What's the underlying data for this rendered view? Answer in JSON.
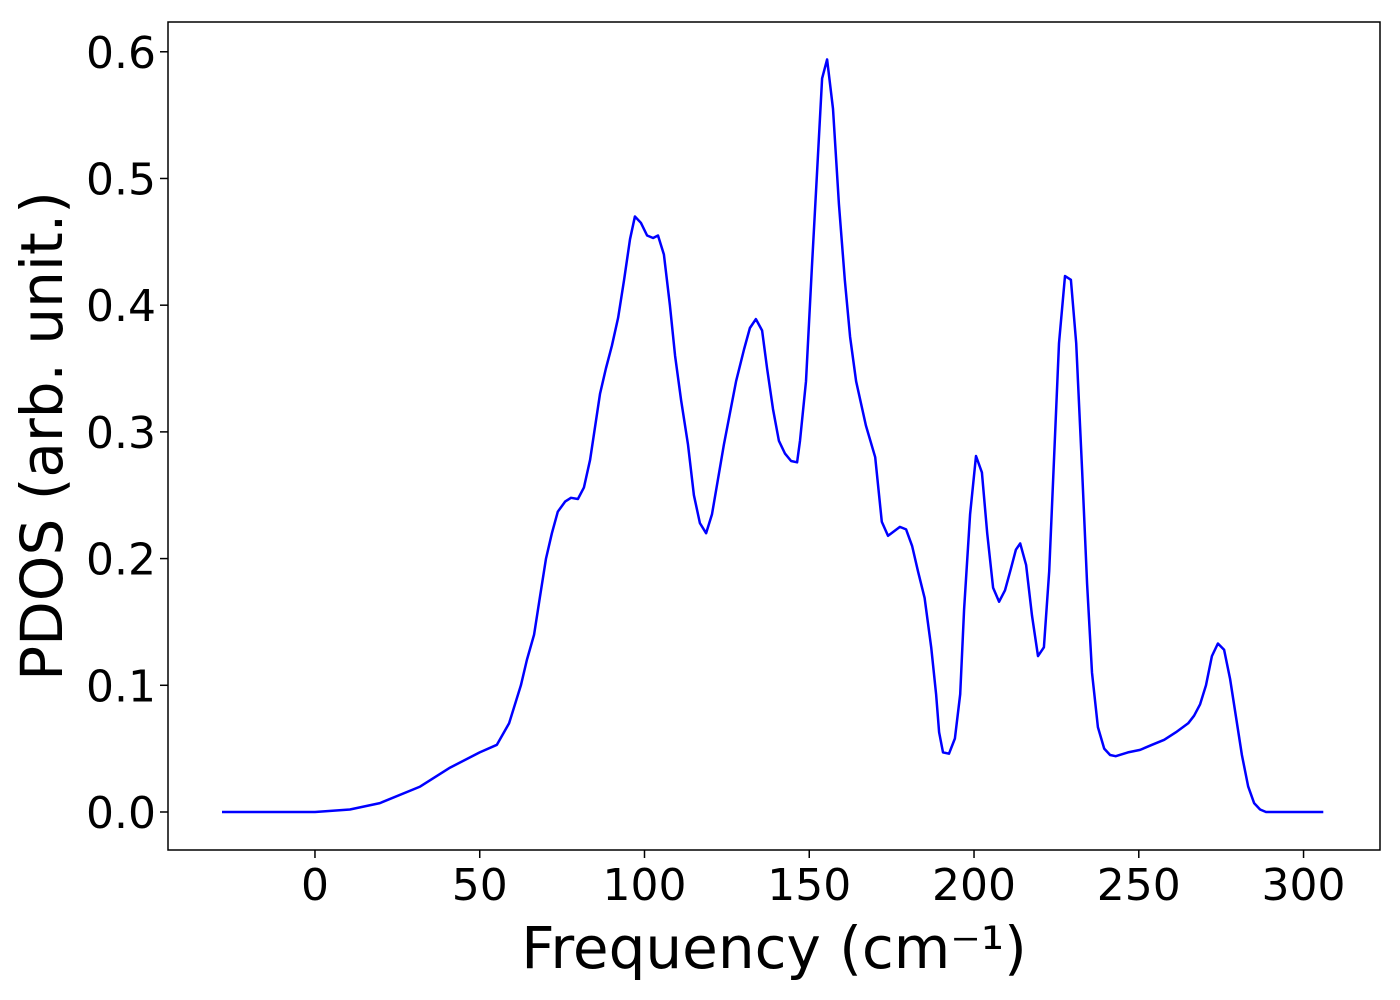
{
  "chart_data": {
    "type": "line",
    "xlabel": "Frequency (cm⁻¹)",
    "ylabel": "PDOS (arb. unit.)",
    "x": [
      -28.2,
      0,
      10.6,
      19.7,
      31.9,
      41,
      50,
      55.2,
      58.9,
      62.5,
      64.3,
      66.5,
      68.3,
      70.1,
      71.9,
      73.7,
      75.9,
      77.7,
      79.8,
      81.6,
      83.5,
      86.5,
      88.3,
      90.1,
      92,
      93.8,
      95.6,
      97.1,
      98.9,
      100.8,
      102.6,
      104.1,
      105.9,
      107.7,
      109.3,
      111.1,
      113.2,
      115,
      116.8,
      118.7,
      120.5,
      124.1,
      127.8,
      130.2,
      132,
      133.8,
      135.7,
      137.2,
      139,
      140.8,
      142.6,
      144.5,
      146.3,
      147.2,
      149,
      150.8,
      152.4,
      153.9,
      155.4,
      157.2,
      159,
      160.8,
      162.4,
      164.2,
      167.2,
      170,
      172,
      173.9,
      177.5,
      179.4,
      181.2,
      183,
      185,
      187,
      188.5,
      189.4,
      190.6,
      192.4,
      194.2,
      195.8,
      197,
      198.8,
      200.6,
      202.4,
      204,
      205.8,
      207.6,
      209.4,
      211.2,
      212.7,
      214,
      215.8,
      217.6,
      219.4,
      221.2,
      222.8,
      224.3,
      225.8,
      227.6,
      229.4,
      231,
      232.8,
      234.3,
      235.8,
      237.6,
      239.5,
      241.3,
      243,
      246.7,
      250.4,
      254,
      257.7,
      261.3,
      265,
      266.8,
      268.6,
      270.4,
      272.2,
      274,
      275.9,
      277.7,
      279.5,
      281.3,
      283.2,
      285,
      286.8,
      288.6,
      306
    ],
    "values": [
      0,
      0,
      0.002,
      0.007,
      0.02,
      0.035,
      0.047,
      0.053,
      0.07,
      0.1,
      0.12,
      0.14,
      0.17,
      0.2,
      0.22,
      0.237,
      0.245,
      0.248,
      0.247,
      0.256,
      0.278,
      0.33,
      0.35,
      0.368,
      0.39,
      0.42,
      0.452,
      0.47,
      0.465,
      0.455,
      0.453,
      0.455,
      0.44,
      0.4,
      0.36,
      0.325,
      0.29,
      0.25,
      0.228,
      0.22,
      0.235,
      0.29,
      0.34,
      0.365,
      0.382,
      0.389,
      0.38,
      0.35,
      0.318,
      0.293,
      0.283,
      0.277,
      0.276,
      0.293,
      0.34,
      0.43,
      0.507,
      0.579,
      0.594,
      0.555,
      0.48,
      0.42,
      0.375,
      0.34,
      0.305,
      0.28,
      0.229,
      0.218,
      0.225,
      0.223,
      0.21,
      0.19,
      0.169,
      0.13,
      0.093,
      0.063,
      0.047,
      0.046,
      0.058,
      0.093,
      0.16,
      0.235,
      0.281,
      0.268,
      0.22,
      0.177,
      0.166,
      0.175,
      0.192,
      0.207,
      0.212,
      0.195,
      0.155,
      0.123,
      0.13,
      0.19,
      0.28,
      0.37,
      0.423,
      0.42,
      0.37,
      0.27,
      0.18,
      0.11,
      0.067,
      0.05,
      0.045,
      0.044,
      0.047,
      0.049,
      0.053,
      0.057,
      0.063,
      0.07,
      0.076,
      0.085,
      0.1,
      0.123,
      0.133,
      0.128,
      0.105,
      0.075,
      0.045,
      0.02,
      0.007,
      0.002,
      0,
      0
    ],
    "color": "#0000ff",
    "xlim": [
      -44.6,
      323.2
    ],
    "xticks": [
      0,
      50,
      100,
      150,
      200,
      250,
      300
    ],
    "ylim": [
      -0.03,
      0.6235
    ],
    "yticks": [
      {
        "value": 0,
        "label": "0.0"
      },
      0.1,
      0.2,
      0.3,
      0.4,
      0.5,
      0.6
    ]
  }
}
